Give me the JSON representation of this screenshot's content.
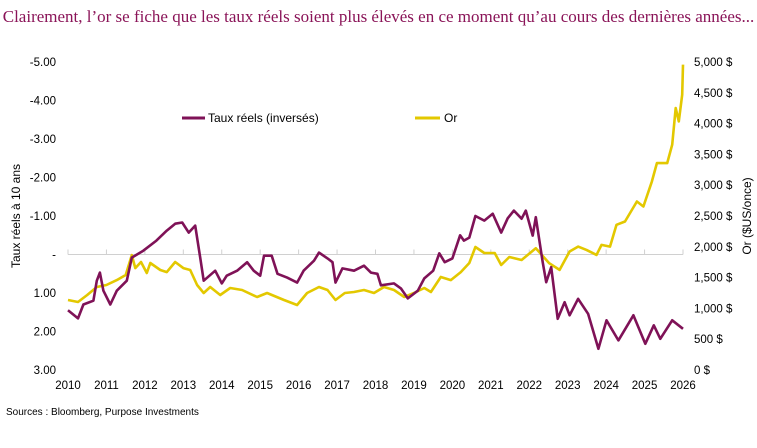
{
  "chart_data": {
    "type": "line",
    "title": "Clairement, l’or se fiche que les taux réels soient plus élevés en ce moment qu’au cours des dernières années...",
    "source": "Sources : Bloomberg, Purpose Investments",
    "xlabel": "",
    "x_ticks": [
      "2010",
      "2011",
      "2012",
      "2013",
      "2014",
      "2015",
      "2016",
      "2017",
      "2018",
      "2019",
      "2020",
      "2021",
      "2022",
      "2023",
      "2024",
      "2025",
      "2026"
    ],
    "xlim": [
      2010,
      2026
    ],
    "y_left": {
      "label": "Taux réels à 10 ans",
      "lim": [
        -5,
        3
      ],
      "inverted": true,
      "ticks": [
        -5,
        -4,
        -3,
        -2,
        -1,
        0,
        1,
        2,
        3
      ],
      "tick_labels": [
        "-5.00",
        "-4.00",
        "-3.00",
        "-2.00",
        "-1.00",
        "-",
        "1.00",
        "2.00",
        "3.00"
      ]
    },
    "y_right": {
      "label": "Or ($US/once)",
      "lim": [
        0,
        5000
      ],
      "ticks": [
        0,
        500,
        1000,
        1500,
        2000,
        2500,
        3000,
        3500,
        4000,
        4500,
        5000
      ],
      "tick_labels": [
        "0 $",
        "500 $",
        "1,000 $",
        "1,500 $",
        "2,000 $",
        "2,500 $",
        "3,000 $",
        "3,500 $",
        "4,000 $",
        "4,500 $",
        "5,000 $"
      ]
    },
    "grid": "zero line only",
    "legend_placement": "top, inside",
    "series": [
      {
        "name": "Taux réels (inversés)",
        "axis": "left",
        "color": "#7f1257",
        "x": [
          2010.0,
          2010.26,
          2010.4,
          2010.66,
          2010.75,
          2010.83,
          2010.92,
          2011.1,
          2011.27,
          2011.53,
          2011.66,
          2011.96,
          2012.3,
          2012.57,
          2012.79,
          2012.97,
          2013.14,
          2013.31,
          2013.44,
          2013.53,
          2013.83,
          2014.0,
          2014.13,
          2014.4,
          2014.66,
          2014.83,
          2015.0,
          2015.1,
          2015.3,
          2015.45,
          2015.7,
          2015.96,
          2016.13,
          2016.4,
          2016.53,
          2016.75,
          2016.88,
          2016.96,
          2017.14,
          2017.44,
          2017.7,
          2017.88,
          2018.05,
          2018.14,
          2018.48,
          2018.66,
          2018.84,
          2019.1,
          2019.27,
          2019.5,
          2019.66,
          2019.8,
          2020.0,
          2020.2,
          2020.3,
          2020.44,
          2020.6,
          2020.83,
          2021.05,
          2021.27,
          2021.44,
          2021.6,
          2021.8,
          2021.91,
          2022.09,
          2022.17,
          2022.35,
          2022.44,
          2022.57,
          2022.74,
          2022.92,
          2023.05,
          2023.27,
          2023.53,
          2023.8,
          2024.01,
          2024.32,
          2024.71,
          2025.02,
          2025.24,
          2025.41,
          2025.72,
          2026.0
        ],
        "values": [
          1.45,
          1.66,
          1.3,
          1.2,
          0.68,
          0.47,
          0.94,
          1.3,
          0.94,
          0.68,
          0.08,
          -0.1,
          -0.36,
          -0.62,
          -0.8,
          -0.83,
          -0.57,
          -0.75,
          0.08,
          0.68,
          0.42,
          0.75,
          0.55,
          0.42,
          0.2,
          0.42,
          0.55,
          0.03,
          0.03,
          0.5,
          0.6,
          0.73,
          0.42,
          0.16,
          -0.05,
          0.1,
          0.2,
          0.73,
          0.36,
          0.42,
          0.29,
          0.47,
          0.5,
          0.8,
          0.75,
          0.88,
          1.14,
          0.94,
          0.62,
          0.42,
          -0.03,
          0.2,
          0.1,
          -0.5,
          -0.36,
          -0.44,
          -1.0,
          -0.88,
          -1.06,
          -0.57,
          -0.94,
          -1.14,
          -0.93,
          -1.14,
          -0.49,
          -0.97,
          0.2,
          0.72,
          0.33,
          1.67,
          1.24,
          1.58,
          1.15,
          1.54,
          2.45,
          1.71,
          2.23,
          1.58,
          2.32,
          1.84,
          2.19,
          1.71,
          1.93
        ]
      },
      {
        "name": "Or",
        "axis": "right",
        "color": "#e3c800",
        "x": [
          2010.0,
          2010.26,
          2010.5,
          2010.75,
          2011.0,
          2011.27,
          2011.5,
          2011.66,
          2011.75,
          2011.9,
          2012.05,
          2012.14,
          2012.4,
          2012.57,
          2012.79,
          2013.0,
          2013.18,
          2013.36,
          2013.53,
          2013.7,
          2013.96,
          2014.22,
          2014.53,
          2014.92,
          2015.18,
          2015.62,
          2015.96,
          2016.22,
          2016.53,
          2016.75,
          2016.96,
          2017.2,
          2017.44,
          2017.7,
          2017.96,
          2018.22,
          2018.48,
          2018.75,
          2019.0,
          2019.27,
          2019.44,
          2019.7,
          2019.96,
          2020.22,
          2020.44,
          2020.6,
          2020.83,
          2021.1,
          2021.27,
          2021.48,
          2021.8,
          2022.17,
          2022.52,
          2022.79,
          2023.05,
          2023.27,
          2023.49,
          2023.75,
          2023.88,
          2024.1,
          2024.27,
          2024.49,
          2024.8,
          2024.97,
          2025.19,
          2025.32,
          2025.59,
          2025.72,
          2025.81,
          2025.89,
          2025.98,
          2026.0
        ],
        "values": [
          1136,
          1104,
          1217,
          1347,
          1380,
          1460,
          1542,
          1866,
          1655,
          1753,
          1574,
          1737,
          1623,
          1590,
          1753,
          1655,
          1623,
          1380,
          1250,
          1347,
          1217,
          1331,
          1298,
          1185,
          1250,
          1136,
          1055,
          1250,
          1347,
          1298,
          1136,
          1250,
          1266,
          1298,
          1250,
          1347,
          1298,
          1185,
          1250,
          1331,
          1266,
          1510,
          1460,
          1590,
          1737,
          1996,
          1899,
          1899,
          1704,
          1834,
          1785,
          1977,
          1733,
          1625,
          1923,
          2004,
          1950,
          1869,
          2031,
          2004,
          2357,
          2411,
          2736,
          2654,
          3061,
          3359,
          3359,
          3657,
          4253,
          4036,
          4469,
          4957
        ]
      }
    ]
  }
}
